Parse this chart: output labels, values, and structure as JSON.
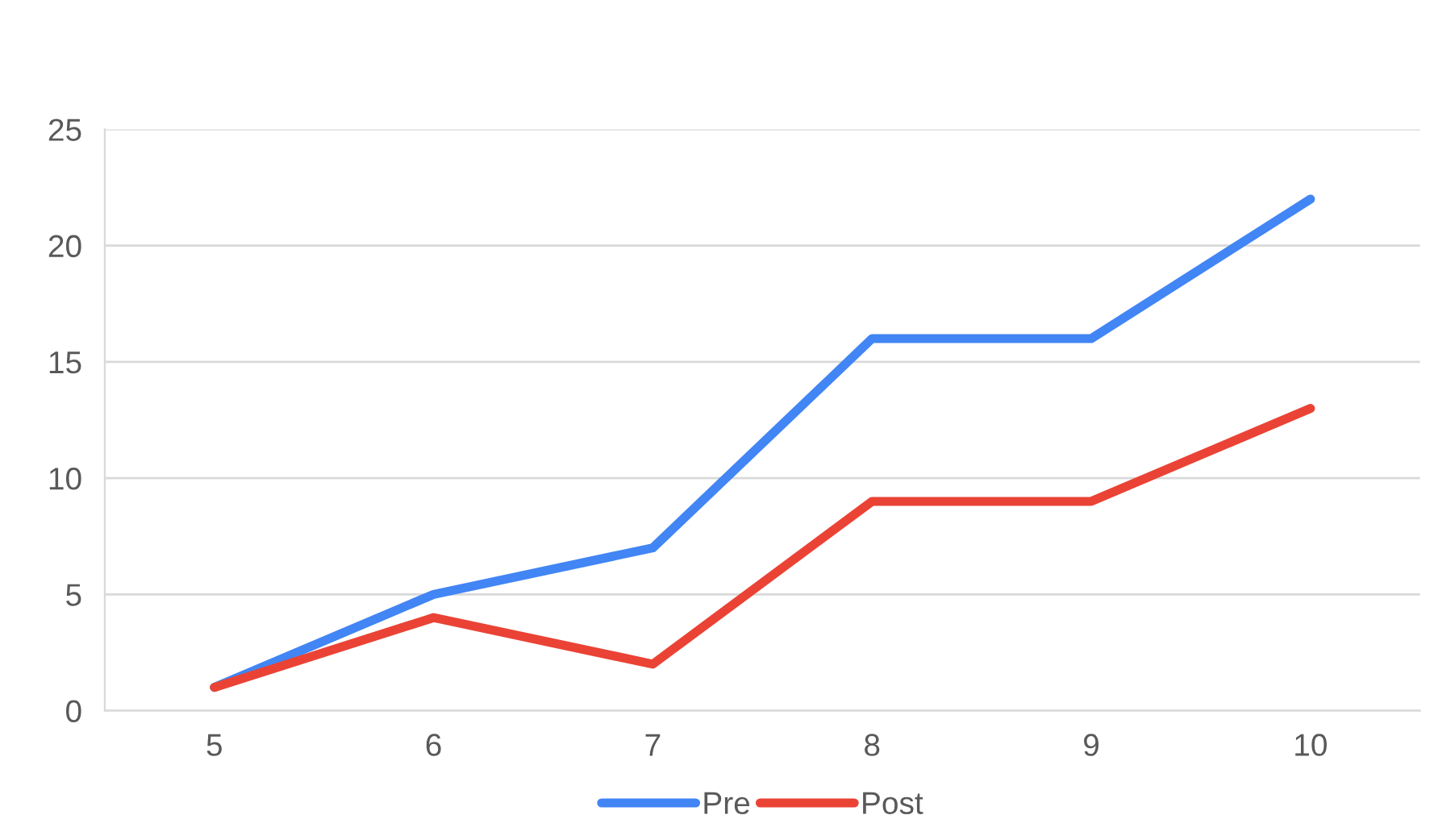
{
  "chart_data": {
    "type": "line",
    "categories": [
      "5",
      "6",
      "7",
      "8",
      "9",
      "10"
    ],
    "series": [
      {
        "name": "Pre",
        "color": "#4285f4",
        "values": [
          1,
          5,
          7,
          16,
          16,
          22
        ]
      },
      {
        "name": "Post",
        "color": "#ea4335",
        "values": [
          1,
          4,
          2,
          9,
          9,
          13
        ]
      }
    ],
    "ylim": [
      0,
      25
    ],
    "yticks": [
      0,
      5,
      10,
      15,
      20,
      25
    ],
    "grid": "y",
    "legend": "bottom",
    "marker": "none",
    "line_style": "solid"
  }
}
